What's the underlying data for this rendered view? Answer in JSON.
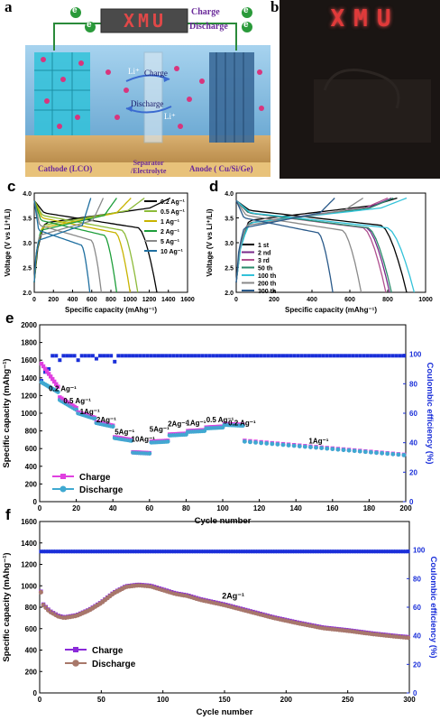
{
  "panel_a": {
    "letter": "a",
    "display_text": "XMU",
    "charge_label": "Charge",
    "discharge_label": "Discharge",
    "electron_symbol": "e",
    "li_label": "Li⁺",
    "arrow_charge": "Charge",
    "arrow_discharge": "Discharge",
    "cathode_label": "Cathode (LCO)",
    "separator_label": "Separator\n/Electrolyte",
    "anode_label": "Anode ( Cu/Si/Ge)",
    "colors": {
      "water_bg": "#7fb8de",
      "cathode": "#33c2d9",
      "anode": "#3b6a99",
      "ion": "#d8357d",
      "display_bg": "#4a4a4a",
      "display_text": "#e04848"
    }
  },
  "panel_b": {
    "letter": "b",
    "display_text": "XMU",
    "colors": {
      "bg": "#1a1513",
      "led": "#e03a3a"
    }
  },
  "chart_data": [
    {
      "id": "c",
      "letter": "c",
      "type": "line",
      "xlabel": "Specific capacity (mAhg⁻¹)",
      "ylabel": "Voltage (V vs Li⁺/Li)",
      "xlim": [
        0,
        1600
      ],
      "ylim": [
        2.0,
        4.0
      ],
      "xticks": [
        0,
        200,
        400,
        600,
        800,
        1000,
        1200,
        1400,
        1600
      ],
      "yticks": [
        2.0,
        2.5,
        3.0,
        3.5,
        4.0
      ],
      "legend_position": "right",
      "series": [
        {
          "name": "0.2 Ag⁻¹",
          "color": "#000000",
          "discharge_capacity": 1280,
          "charge_capacity": 1420,
          "plateau": 3.3
        },
        {
          "name": "0.5 Ag⁻¹",
          "color": "#8dbb3a",
          "discharge_capacity": 1080,
          "charge_capacity": 1150,
          "plateau": 3.25
        },
        {
          "name": "1 Ag⁻¹",
          "color": "#c8b400",
          "discharge_capacity": 1000,
          "charge_capacity": 1010,
          "plateau": 3.2
        },
        {
          "name": "2 Ag⁻¹",
          "color": "#1e9e3a",
          "discharge_capacity": 860,
          "charge_capacity": 860,
          "plateau": 3.15
        },
        {
          "name": "5 Ag⁻¹",
          "color": "#8a8a8a",
          "discharge_capacity": 700,
          "charge_capacity": 720,
          "plateau": 3.05
        },
        {
          "name": "10 Ag⁻¹",
          "color": "#1f6fa0",
          "discharge_capacity": 580,
          "charge_capacity": 590,
          "plateau": 2.95
        }
      ]
    },
    {
      "id": "d",
      "letter": "d",
      "type": "line",
      "xlabel": "Specific capacity (mAhg⁻¹)",
      "ylabel": "Voltage (V vs Li⁺/Li)",
      "xlim": [
        0,
        1000
      ],
      "ylim": [
        2.0,
        4.0
      ],
      "xticks": [
        0,
        200,
        400,
        600,
        800,
        1000
      ],
      "yticks": [
        2.0,
        2.5,
        3.0,
        3.5,
        4.0
      ],
      "legend_position": "left",
      "series": [
        {
          "name": "1 st",
          "color": "#000000",
          "discharge_capacity": 900,
          "charge_capacity": 850,
          "plateau": 3.35
        },
        {
          "name": "2 nd",
          "color": "#7a2a8a",
          "discharge_capacity": 810,
          "charge_capacity": 820,
          "plateau": 3.3
        },
        {
          "name": "3 rd",
          "color": "#b05090",
          "discharge_capacity": 790,
          "charge_capacity": 800,
          "plateau": 3.3
        },
        {
          "name": "50 th",
          "color": "#2a8a6a",
          "discharge_capacity": 820,
          "charge_capacity": 830,
          "plateau": 3.3
        },
        {
          "name": "100 th",
          "color": "#33c2d9",
          "discharge_capacity": 940,
          "charge_capacity": 900,
          "plateau": 3.3
        },
        {
          "name": "200 th",
          "color": "#8a8a8a",
          "discharge_capacity": 660,
          "charge_capacity": 670,
          "plateau": 3.25
        },
        {
          "name": "300 th",
          "color": "#2a5a8a",
          "discharge_capacity": 510,
          "charge_capacity": 520,
          "plateau": 3.2
        }
      ]
    },
    {
      "id": "e",
      "letter": "e",
      "type": "scatter",
      "xlabel": "Cycle number",
      "ylabel": "Specific capacity (mAhg⁻¹)",
      "y2label": "Coulombic efficiency (%)",
      "xlim": [
        0,
        200
      ],
      "ylim": [
        0,
        2000
      ],
      "y2lim": [
        0,
        120
      ],
      "xticks": [
        0,
        20,
        40,
        60,
        80,
        100,
        120,
        140,
        160,
        180,
        200
      ],
      "yticks": [
        0,
        200,
        400,
        600,
        800,
        1000,
        1200,
        1400,
        1600,
        1800,
        2000
      ],
      "y2ticks": [
        0,
        20,
        40,
        60,
        80,
        100
      ],
      "legend_position": "bottom-left",
      "rate_annotations": [
        {
          "text": "0.2 Ag⁻¹",
          "x": 5,
          "y": 1250
        },
        {
          "text": "0.5 Ag⁻¹",
          "x": 13,
          "y": 1110
        },
        {
          "text": "1Ag⁻¹",
          "x": 22,
          "y": 990
        },
        {
          "text": "2Ag⁻¹",
          "x": 31,
          "y": 900
        },
        {
          "text": "5Ag⁻¹",
          "x": 41,
          "y": 760
        },
        {
          "text": "10Ag⁻¹",
          "x": 50,
          "y": 680
        },
        {
          "text": "5Ag⁻¹",
          "x": 60,
          "y": 790
        },
        {
          "text": "2Ag⁻¹",
          "x": 70,
          "y": 850
        },
        {
          "text": "1Ag⁻¹",
          "x": 80,
          "y": 860
        },
        {
          "text": "0.5 Ag⁻¹",
          "x": 91,
          "y": 900
        },
        {
          "text": "0.2 Ag⁻¹",
          "x": 103,
          "y": 860
        },
        {
          "text": "1Ag⁻¹",
          "x": 147,
          "y": 660
        }
      ],
      "series": [
        {
          "name": "Charge",
          "color": "#e040e0",
          "marker": "square"
        },
        {
          "name": "Discharge",
          "color": "#3fa9d1",
          "marker": "circle"
        },
        {
          "name": "Coulombic efficiency",
          "color": "#1a2fd9",
          "marker": "square",
          "axis": "right"
        }
      ],
      "segments": [
        {
          "start": 1,
          "end": 10,
          "charge_from": 1560,
          "charge_to": 1300,
          "discharge_from": 1350,
          "discharge_to": 1240
        },
        {
          "start": 11,
          "end": 20,
          "charge_from": 1180,
          "charge_to": 1060,
          "discharge_from": 1150,
          "discharge_to": 1040
        },
        {
          "start": 21,
          "end": 30,
          "charge_from": 1010,
          "charge_to": 950,
          "discharge_from": 1000,
          "discharge_to": 940
        },
        {
          "start": 31,
          "end": 40,
          "charge_from": 900,
          "charge_to": 860,
          "discharge_from": 890,
          "discharge_to": 850
        },
        {
          "start": 41,
          "end": 50,
          "charge_from": 730,
          "charge_to": 700,
          "discharge_from": 720,
          "discharge_to": 690
        },
        {
          "start": 51,
          "end": 60,
          "charge_from": 560,
          "charge_to": 550,
          "discharge_from": 555,
          "discharge_to": 545
        },
        {
          "start": 61,
          "end": 70,
          "charge_from": 680,
          "charge_to": 690,
          "discharge_from": 670,
          "discharge_to": 680
        },
        {
          "start": 71,
          "end": 80,
          "charge_from": 760,
          "charge_to": 770,
          "discharge_from": 750,
          "discharge_to": 760
        },
        {
          "start": 81,
          "end": 90,
          "charge_from": 800,
          "charge_to": 810,
          "discharge_from": 790,
          "discharge_to": 800
        },
        {
          "start": 91,
          "end": 100,
          "charge_from": 840,
          "charge_to": 850,
          "discharge_from": 830,
          "discharge_to": 840
        },
        {
          "start": 101,
          "end": 111,
          "charge_from": 880,
          "charge_to": 870,
          "discharge_from": 870,
          "discharge_to": 860
        },
        {
          "start": 112,
          "end": 200,
          "charge_from": 690,
          "charge_to": 530,
          "discharge_from": 680,
          "discharge_to": 525
        }
      ],
      "efficiency": {
        "steady": 99,
        "outliers": [
          {
            "x": 1,
            "y": 82
          },
          {
            "x": 3,
            "y": 88
          },
          {
            "x": 5,
            "y": 90
          },
          {
            "x": 11,
            "y": 96
          },
          {
            "x": 21,
            "y": 96
          },
          {
            "x": 31,
            "y": 97
          },
          {
            "x": 41,
            "y": 95
          },
          {
            "x": 52,
            "y": 96
          },
          {
            "x": 62,
            "y": 102
          },
          {
            "x": 72,
            "y": 103
          },
          {
            "x": 82,
            "y": 101
          },
          {
            "x": 92,
            "y": 100
          },
          {
            "x": 102,
            "y": 101
          },
          {
            "x": 112,
            "y": 88
          }
        ]
      }
    },
    {
      "id": "f",
      "letter": "f",
      "type": "scatter",
      "xlabel": "Cycle number",
      "ylabel": "Specific capacity (mAhg⁻¹)",
      "y2label": "Coulombic efficiency (%)",
      "xlim": [
        0,
        300
      ],
      "ylim": [
        0,
        1600
      ],
      "y2lim": [
        0,
        120
      ],
      "xticks": [
        0,
        50,
        100,
        150,
        200,
        250,
        300
      ],
      "yticks": [
        0,
        200,
        400,
        600,
        800,
        1000,
        1200,
        1400,
        1600
      ],
      "y2ticks": [
        0,
        20,
        40,
        60,
        80,
        100
      ],
      "legend_position": "bottom-left",
      "annotation": {
        "text": "2Ag⁻¹",
        "x": 148,
        "y": 880
      },
      "series": [
        {
          "name": "Charge",
          "color": "#8a2ad9",
          "marker": "square"
        },
        {
          "name": "Discharge",
          "color": "#a8786a",
          "marker": "circle"
        },
        {
          "name": "Coulombic efficiency",
          "color": "#1a2fd9",
          "marker": "square",
          "axis": "right"
        }
      ],
      "capacity_points": [
        [
          1,
          940
        ],
        [
          3,
          820
        ],
        [
          8,
          760
        ],
        [
          15,
          715
        ],
        [
          20,
          700
        ],
        [
          30,
          720
        ],
        [
          40,
          770
        ],
        [
          50,
          840
        ],
        [
          60,
          930
        ],
        [
          70,
          990
        ],
        [
          80,
          1005
        ],
        [
          90,
          995
        ],
        [
          100,
          960
        ],
        [
          110,
          925
        ],
        [
          120,
          905
        ],
        [
          130,
          870
        ],
        [
          150,
          820
        ],
        [
          170,
          760
        ],
        [
          190,
          700
        ],
        [
          210,
          650
        ],
        [
          230,
          605
        ],
        [
          250,
          580
        ],
        [
          270,
          550
        ],
        [
          290,
          525
        ],
        [
          300,
          515
        ]
      ],
      "efficiency_steady": 99
    }
  ]
}
